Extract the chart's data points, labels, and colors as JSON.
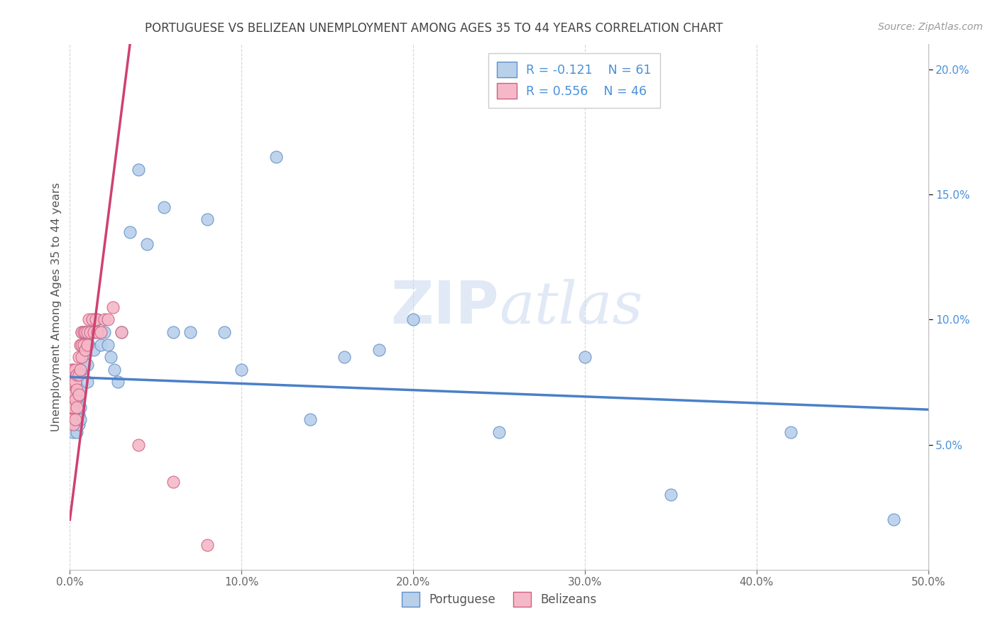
{
  "title": "PORTUGUESE VS BELIZEAN UNEMPLOYMENT AMONG AGES 35 TO 44 YEARS CORRELATION CHART",
  "source": "Source: ZipAtlas.com",
  "ylabel": "Unemployment Among Ages 35 to 44 years",
  "xlim": [
    0,
    0.5
  ],
  "ylim": [
    0,
    0.21
  ],
  "xticks": [
    0.0,
    0.1,
    0.2,
    0.3,
    0.4,
    0.5
  ],
  "yticks": [
    0.05,
    0.1,
    0.15,
    0.2
  ],
  "r_portuguese": -0.121,
  "n_portuguese": 61,
  "r_belizean": 0.556,
  "n_belizean": 46,
  "portuguese_face_color": "#b8d0ea",
  "portuguese_edge_color": "#6090c8",
  "belizean_face_color": "#f5b8c8",
  "belizean_edge_color": "#d06080",
  "trend_portuguese_color": "#4a80c8",
  "trend_belizean_color": "#d04070",
  "watermark_color": "#c8d8ee",
  "background_color": "#ffffff",
  "grid_color": "#cccccc",
  "title_color": "#444444",
  "source_color": "#999999",
  "axis_label_color": "#555555",
  "right_axis_color": "#4a90d9",
  "portuguese_x": [
    0.001,
    0.001,
    0.002,
    0.002,
    0.002,
    0.002,
    0.003,
    0.003,
    0.003,
    0.003,
    0.004,
    0.004,
    0.004,
    0.004,
    0.005,
    0.005,
    0.005,
    0.006,
    0.006,
    0.006,
    0.007,
    0.007,
    0.008,
    0.008,
    0.009,
    0.009,
    0.01,
    0.01,
    0.011,
    0.012,
    0.013,
    0.014,
    0.015,
    0.016,
    0.017,
    0.018,
    0.02,
    0.022,
    0.024,
    0.026,
    0.028,
    0.03,
    0.035,
    0.04,
    0.045,
    0.055,
    0.06,
    0.07,
    0.08,
    0.09,
    0.1,
    0.12,
    0.14,
    0.16,
    0.18,
    0.2,
    0.25,
    0.3,
    0.35,
    0.42,
    0.48
  ],
  "portuguese_y": [
    0.06,
    0.065,
    0.055,
    0.06,
    0.062,
    0.068,
    0.058,
    0.062,
    0.065,
    0.07,
    0.055,
    0.06,
    0.063,
    0.068,
    0.058,
    0.062,
    0.07,
    0.06,
    0.065,
    0.072,
    0.08,
    0.095,
    0.085,
    0.09,
    0.095,
    0.082,
    0.075,
    0.082,
    0.09,
    0.095,
    0.1,
    0.088,
    0.095,
    0.1,
    0.095,
    0.09,
    0.095,
    0.09,
    0.085,
    0.08,
    0.075,
    0.095,
    0.135,
    0.16,
    0.13,
    0.145,
    0.095,
    0.095,
    0.14,
    0.095,
    0.08,
    0.165,
    0.06,
    0.085,
    0.088,
    0.1,
    0.055,
    0.085,
    0.03,
    0.055,
    0.02
  ],
  "belizean_x": [
    0.0005,
    0.001,
    0.001,
    0.001,
    0.001,
    0.001,
    0.002,
    0.002,
    0.002,
    0.002,
    0.002,
    0.003,
    0.003,
    0.003,
    0.003,
    0.004,
    0.004,
    0.004,
    0.005,
    0.005,
    0.005,
    0.006,
    0.006,
    0.007,
    0.007,
    0.007,
    0.008,
    0.008,
    0.009,
    0.009,
    0.01,
    0.01,
    0.011,
    0.012,
    0.013,
    0.014,
    0.015,
    0.016,
    0.018,
    0.02,
    0.022,
    0.025,
    0.03,
    0.04,
    0.06,
    0.08
  ],
  "belizean_y": [
    0.062,
    0.06,
    0.065,
    0.07,
    0.075,
    0.08,
    0.058,
    0.065,
    0.07,
    0.075,
    0.08,
    0.06,
    0.068,
    0.075,
    0.08,
    0.065,
    0.072,
    0.078,
    0.07,
    0.078,
    0.085,
    0.08,
    0.09,
    0.085,
    0.09,
    0.095,
    0.09,
    0.095,
    0.088,
    0.095,
    0.09,
    0.095,
    0.1,
    0.095,
    0.1,
    0.095,
    0.1,
    0.095,
    0.095,
    0.1,
    0.1,
    0.105,
    0.095,
    0.05,
    0.035,
    0.01
  ],
  "trend_port_x0": 0.0,
  "trend_port_x1": 0.5,
  "trend_port_y0": 0.077,
  "trend_port_y1": 0.064,
  "trend_bel_x0": 0.0,
  "trend_bel_x1": 0.035,
  "trend_bel_y0": 0.02,
  "trend_bel_y1": 0.21
}
